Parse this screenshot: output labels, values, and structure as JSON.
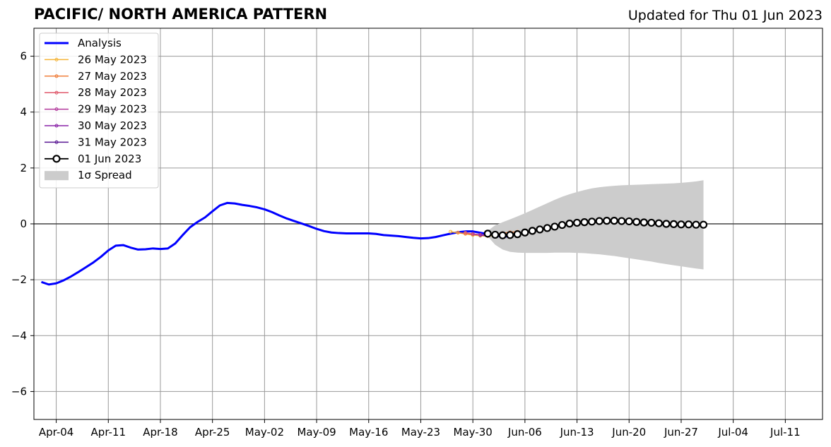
{
  "title": "PACIFIC/ NORTH AMERICA PATTERN",
  "updated": "Updated for Thu 01 Jun 2023",
  "chart_data": {
    "type": "line",
    "title": "PACIFIC/ NORTH AMERICA PATTERN",
    "xlabel": "",
    "ylabel": "",
    "x_range": [
      "2023-04-01",
      "2023-07-16"
    ],
    "ylim": [
      -7,
      7
    ],
    "grid": true,
    "legend_placement": "top-left",
    "x_ticks": [
      {
        "date": "2023-04-04",
        "label": "Apr-04"
      },
      {
        "date": "2023-04-11",
        "label": "Apr-11"
      },
      {
        "date": "2023-04-18",
        "label": "Apr-18"
      },
      {
        "date": "2023-04-25",
        "label": "Apr-25"
      },
      {
        "date": "2023-05-02",
        "label": "May-02"
      },
      {
        "date": "2023-05-09",
        "label": "May-09"
      },
      {
        "date": "2023-05-16",
        "label": "May-16"
      },
      {
        "date": "2023-05-23",
        "label": "May-23"
      },
      {
        "date": "2023-05-30",
        "label": "May-30"
      },
      {
        "date": "2023-06-06",
        "label": "Jun-06"
      },
      {
        "date": "2023-06-13",
        "label": "Jun-13"
      },
      {
        "date": "2023-06-20",
        "label": "Jun-20"
      },
      {
        "date": "2023-06-27",
        "label": "Jun-27"
      },
      {
        "date": "2023-07-04",
        "label": "Jul-04"
      },
      {
        "date": "2023-07-11",
        "label": "Jul-11"
      }
    ],
    "y_ticks": [
      {
        "value": 6,
        "label": "6"
      },
      {
        "value": 4,
        "label": "4"
      },
      {
        "value": 2,
        "label": "2"
      },
      {
        "value": 0,
        "label": "0"
      },
      {
        "value": -2,
        "label": "−2"
      },
      {
        "value": -4,
        "label": "−4"
      },
      {
        "value": -6,
        "label": "−6"
      }
    ],
    "analysis": {
      "name": "Analysis",
      "color": "#0000ff",
      "start": "2023-04-02",
      "values": [
        -2.08,
        -2.17,
        -2.13,
        -2.02,
        -1.88,
        -1.72,
        -1.55,
        -1.38,
        -1.18,
        -0.95,
        -0.78,
        -0.76,
        -0.85,
        -0.92,
        -0.91,
        -0.88,
        -0.9,
        -0.88,
        -0.7,
        -0.4,
        -0.12,
        0.07,
        0.23,
        0.45,
        0.66,
        0.75,
        0.73,
        0.68,
        0.64,
        0.59,
        0.52,
        0.42,
        0.3,
        0.19,
        0.1,
        0.01,
        -0.08,
        -0.18,
        -0.26,
        -0.31,
        -0.33,
        -0.34,
        -0.34,
        -0.34,
        -0.34,
        -0.36,
        -0.4,
        -0.42,
        -0.44,
        -0.47,
        -0.5,
        -0.52,
        -0.51,
        -0.47,
        -0.41,
        -0.35,
        -0.3,
        -0.27,
        -0.27,
        -0.32,
        -0.37,
        -0.42,
        -0.45,
        -0.45
      ]
    },
    "forecasts": [
      {
        "name": "26 May 2023",
        "color": "#f5b436",
        "start": "2023-05-27",
        "values": [
          -0.28,
          -0.32,
          -0.36,
          -0.4,
          -0.43,
          -0.44,
          -0.42,
          -0.38
        ]
      },
      {
        "name": "27 May 2023",
        "color": "#f07f3c",
        "start": "2023-05-28",
        "values": [
          -0.31,
          -0.35,
          -0.38,
          -0.4,
          -0.4,
          -0.37,
          -0.33,
          -0.3,
          -0.28
        ]
      },
      {
        "name": "28 May 2023",
        "color": "#e05a6c",
        "start": "2023-05-29",
        "values": [
          -0.32,
          -0.36,
          -0.39,
          -0.41
        ]
      },
      {
        "name": "29 May 2023",
        "color": "#b2399c",
        "start": "2023-05-30",
        "values": [
          -0.36,
          -0.4,
          -0.43
        ]
      },
      {
        "name": "30 May 2023",
        "color": "#8a23a8",
        "start": "2023-05-31",
        "values": [
          -0.4,
          -0.43
        ]
      },
      {
        "name": "31 May 2023",
        "color": "#5a1994",
        "start": "2023-06-01",
        "values": [
          -0.42
        ]
      }
    ],
    "current_forecast": {
      "name": "01 Jun 2023",
      "color": "#000000",
      "start": "2023-06-01",
      "values": [
        -0.35,
        -0.39,
        -0.41,
        -0.4,
        -0.37,
        -0.31,
        -0.25,
        -0.2,
        -0.15,
        -0.1,
        -0.04,
        0.01,
        0.04,
        0.06,
        0.08,
        0.1,
        0.11,
        0.11,
        0.1,
        0.09,
        0.07,
        0.05,
        0.04,
        0.02,
        0.0,
        -0.01,
        -0.02,
        -0.02,
        -0.03,
        -0.03
      ]
    },
    "spread": {
      "name": "1σ Spread",
      "color": "#cccccc",
      "start": "2023-06-01",
      "upper": [
        -0.25,
        -0.05,
        0.06,
        0.16,
        0.27,
        0.38,
        0.5,
        0.62,
        0.74,
        0.86,
        0.97,
        1.06,
        1.14,
        1.21,
        1.27,
        1.31,
        1.34,
        1.36,
        1.38,
        1.39,
        1.4,
        1.41,
        1.42,
        1.43,
        1.44,
        1.45,
        1.47,
        1.49,
        1.52,
        1.56
      ],
      "lower": [
        -0.45,
        -0.75,
        -0.92,
        -1.0,
        -1.03,
        -1.04,
        -1.04,
        -1.04,
        -1.04,
        -1.03,
        -1.03,
        -1.03,
        -1.04,
        -1.05,
        -1.07,
        -1.09,
        -1.12,
        -1.15,
        -1.19,
        -1.23,
        -1.27,
        -1.31,
        -1.35,
        -1.4,
        -1.44,
        -1.48,
        -1.52,
        -1.56,
        -1.6,
        -1.63
      ]
    },
    "legend": [
      {
        "label": "Analysis",
        "kind": "analysis"
      },
      {
        "label": "26 May 2023",
        "kind": "forecast"
      },
      {
        "label": "27 May 2023",
        "kind": "forecast"
      },
      {
        "label": "28 May 2023",
        "kind": "forecast"
      },
      {
        "label": "29 May 2023",
        "kind": "forecast"
      },
      {
        "label": "30 May 2023",
        "kind": "forecast"
      },
      {
        "label": "31 May 2023",
        "kind": "forecast"
      },
      {
        "label": "01 Jun 2023",
        "kind": "current"
      },
      {
        "label": "1σ Spread",
        "kind": "spread"
      }
    ]
  }
}
